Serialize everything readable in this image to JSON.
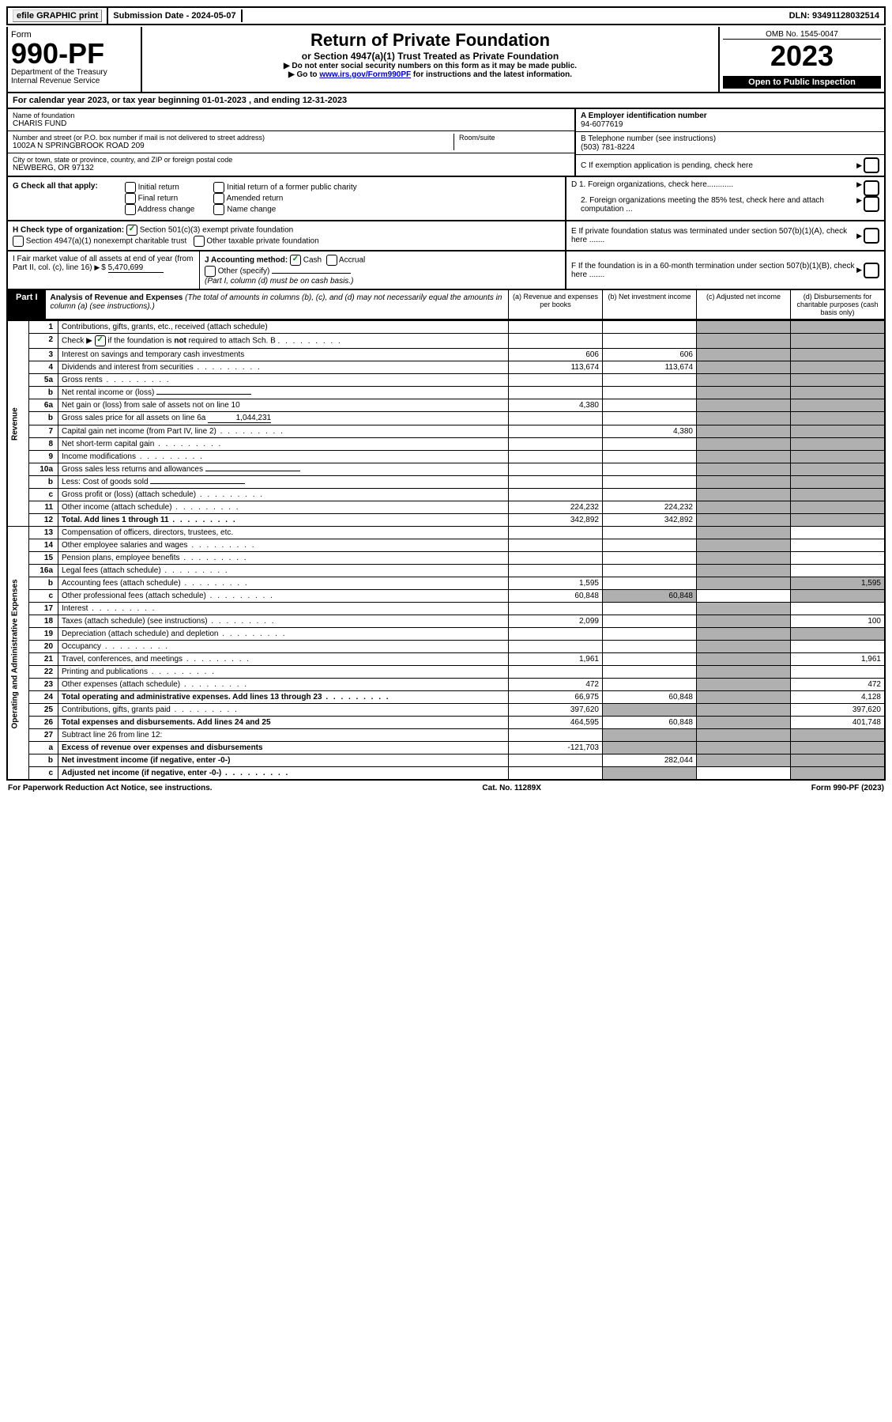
{
  "topbar": {
    "efile": "efile GRAPHIC print",
    "submission": "Submission Date - 2024-05-07",
    "dln": "DLN: 93491128032514"
  },
  "header": {
    "form_word": "Form",
    "form_num": "990-PF",
    "dept": "Department of the Treasury",
    "irs": "Internal Revenue Service",
    "title": "Return of Private Foundation",
    "subtitle": "or Section 4947(a)(1) Trust Treated as Private Foundation",
    "instr1": "▶ Do not enter social security numbers on this form as it may be made public.",
    "instr2_pre": "▶ Go to ",
    "instr2_link": "www.irs.gov/Form990PF",
    "instr2_post": " for instructions and the latest information.",
    "omb": "OMB No. 1545-0047",
    "year": "2023",
    "open": "Open to Public Inspection"
  },
  "calyear": "For calendar year 2023, or tax year beginning 01-01-2023                           , and ending 12-31-2023",
  "name_block": {
    "label": "Name of foundation",
    "value": "CHARIS FUND",
    "addr_label": "Number and street (or P.O. box number if mail is not delivered to street address)",
    "addr": "1002A N SPRINGBROOK ROAD 209",
    "room_label": "Room/suite",
    "city_label": "City or town, state or province, country, and ZIP or foreign postal code",
    "city": "NEWBERG, OR  97132"
  },
  "right_block": {
    "a_label": "A Employer identification number",
    "a_val": "94-6077619",
    "b_label": "B Telephone number (see instructions)",
    "b_val": "(503) 781-8224",
    "c_label": "C If exemption application is pending, check here",
    "d1": "D 1. Foreign organizations, check here............",
    "d2": "2. Foreign organizations meeting the 85% test, check here and attach computation ...",
    "e": "E  If private foundation status was terminated under section 507(b)(1)(A), check here .......",
    "f": "F  If the foundation is in a 60-month termination under section 507(b)(1)(B), check here ......."
  },
  "g": {
    "label": "G Check all that apply:",
    "o1": "Initial return",
    "o2": "Final return",
    "o3": "Address change",
    "o4": "Initial return of a former public charity",
    "o5": "Amended return",
    "o6": "Name change"
  },
  "h": {
    "label": "H Check type of organization:",
    "o1": "Section 501(c)(3) exempt private foundation",
    "o2": "Section 4947(a)(1) nonexempt charitable trust",
    "o3": "Other taxable private foundation"
  },
  "i": {
    "label": "I Fair market value of all assets at end of year (from Part II, col. (c), line 16)",
    "val": "5,470,699"
  },
  "j": {
    "label": "J Accounting method:",
    "cash": "Cash",
    "accrual": "Accrual",
    "other": "Other (specify)",
    "note": "(Part I, column (d) must be on cash basis.)"
  },
  "part1": {
    "title": "Part I",
    "heading": "Analysis of Revenue and Expenses",
    "note": "(The total of amounts in columns (b), (c), and (d) may not necessarily equal the amounts in column (a) (see instructions).)",
    "col_a": "(a)   Revenue and expenses per books",
    "col_b": "(b)   Net investment income",
    "col_c": "(c)  Adjusted net income",
    "col_d": "(d)  Disbursements for charitable purposes (cash basis only)"
  },
  "side": {
    "rev": "Revenue",
    "exp": "Operating and Administrative Expenses"
  },
  "rows": [
    {
      "n": "1",
      "d": "Contributions, gifts, grants, etc., received (attach schedule)"
    },
    {
      "n": "2",
      "d": "Check ▶ ☑ if the foundation is not required to attach Sch. B",
      "dots": true,
      "chk": true
    },
    {
      "n": "3",
      "d": "Interest on savings and temporary cash investments",
      "a": "606",
      "b": "606"
    },
    {
      "n": "4",
      "d": "Dividends and interest from securities",
      "dots": true,
      "a": "113,674",
      "b": "113,674"
    },
    {
      "n": "5a",
      "d": "Gross rents",
      "dots": true
    },
    {
      "n": "b",
      "d": "Net rental income or (loss)",
      "inline": true
    },
    {
      "n": "6a",
      "d": "Net gain or (loss) from sale of assets not on line 10",
      "a": "4,380"
    },
    {
      "n": "b",
      "d": "Gross sales price for all assets on line 6a",
      "inline_val": "1,044,231"
    },
    {
      "n": "7",
      "d": "Capital gain net income (from Part IV, line 2)",
      "dots": true,
      "b": "4,380"
    },
    {
      "n": "8",
      "d": "Net short-term capital gain",
      "dots": true
    },
    {
      "n": "9",
      "d": "Income modifications",
      "dots": true
    },
    {
      "n": "10a",
      "d": "Gross sales less returns and allowances",
      "inline": true
    },
    {
      "n": "b",
      "d": "Less: Cost of goods sold",
      "dots": true,
      "inline": true
    },
    {
      "n": "c",
      "d": "Gross profit or (loss) (attach schedule)",
      "dots": true
    },
    {
      "n": "11",
      "d": "Other income (attach schedule)",
      "dots": true,
      "a": "224,232",
      "b": "224,232"
    },
    {
      "n": "12",
      "d": "Total. Add lines 1 through 11",
      "dots": true,
      "bold": true,
      "a": "342,892",
      "b": "342,892"
    }
  ],
  "exp_rows": [
    {
      "n": "13",
      "d": "Compensation of officers, directors, trustees, etc."
    },
    {
      "n": "14",
      "d": "Other employee salaries and wages",
      "dots": true
    },
    {
      "n": "15",
      "d": "Pension plans, employee benefits",
      "dots": true
    },
    {
      "n": "16a",
      "d": "Legal fees (attach schedule)",
      "dots": true
    },
    {
      "n": "b",
      "d": "Accounting fees (attach schedule)",
      "dots": true,
      "a": "1,595",
      "dd": "1,595"
    },
    {
      "n": "c",
      "d": "Other professional fees (attach schedule)",
      "dots": true,
      "a": "60,848",
      "b": "60,848"
    },
    {
      "n": "17",
      "d": "Interest",
      "dots": true
    },
    {
      "n": "18",
      "d": "Taxes (attach schedule) (see instructions)",
      "dots": true,
      "a": "2,099",
      "dd": "100"
    },
    {
      "n": "19",
      "d": "Depreciation (attach schedule) and depletion",
      "dots": true
    },
    {
      "n": "20",
      "d": "Occupancy",
      "dots": true
    },
    {
      "n": "21",
      "d": "Travel, conferences, and meetings",
      "dots": true,
      "a": "1,961",
      "dd": "1,961"
    },
    {
      "n": "22",
      "d": "Printing and publications",
      "dots": true
    },
    {
      "n": "23",
      "d": "Other expenses (attach schedule)",
      "dots": true,
      "a": "472",
      "dd": "472"
    },
    {
      "n": "24",
      "d": "Total operating and administrative expenses. Add lines 13 through 23",
      "dots": true,
      "bold": true,
      "a": "66,975",
      "b": "60,848",
      "dd": "4,128"
    },
    {
      "n": "25",
      "d": "Contributions, gifts, grants paid",
      "dots": true,
      "a": "397,620",
      "dd": "397,620"
    },
    {
      "n": "26",
      "d": "Total expenses and disbursements. Add lines 24 and 25",
      "bold": true,
      "a": "464,595",
      "b": "60,848",
      "dd": "401,748"
    },
    {
      "n": "27",
      "d": "Subtract line 26 from line 12:"
    },
    {
      "n": "a",
      "d": "Excess of revenue over expenses and disbursements",
      "bold": true,
      "a": "-121,703"
    },
    {
      "n": "b",
      "d": "Net investment income (if negative, enter -0-)",
      "bold": true,
      "b": "282,044"
    },
    {
      "n": "c",
      "d": "Adjusted net income (if negative, enter -0-)",
      "bold": true,
      "dots": true
    }
  ],
  "footer": {
    "left": "For Paperwork Reduction Act Notice, see instructions.",
    "mid": "Cat. No. 11289X",
    "right": "Form 990-PF (2023)"
  },
  "colors": {
    "shade": "#b0b0b0",
    "link": "#0000cc",
    "check": "#008000"
  }
}
